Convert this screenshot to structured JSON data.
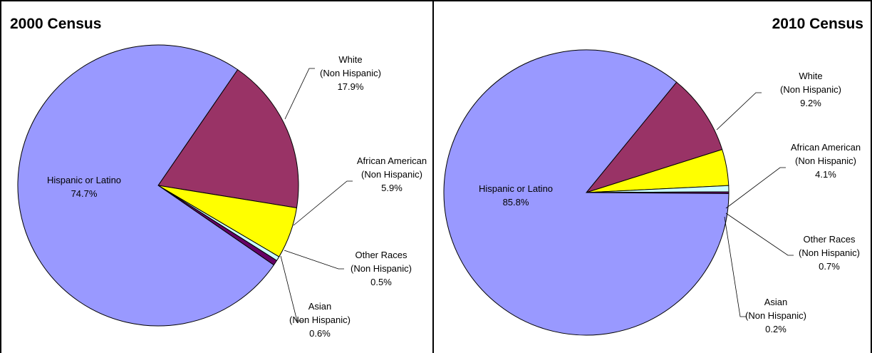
{
  "chart_data": [
    {
      "type": "pie",
      "title": "2000 Census",
      "slices": [
        {
          "label": [
            "White",
            "(Non Hispanic)"
          ],
          "value": 17.9,
          "display": "17.9%",
          "color": "#993366"
        },
        {
          "label": [
            "African American",
            "(Non Hispanic)"
          ],
          "value": 5.9,
          "display": "5.9%",
          "color": "#ffff00"
        },
        {
          "label": [
            "Other Races",
            "(Non Hispanic)"
          ],
          "value": 0.5,
          "display": "0.5%",
          "color": "#ccffff"
        },
        {
          "label": [
            "Asian",
            "(Non Hispanic)"
          ],
          "value": 0.6,
          "display": "0.6%",
          "color": "#660066"
        },
        {
          "label": [
            "Hispanic or Latino"
          ],
          "value": 74.7,
          "display": "74.7%",
          "color": "#9999ff"
        }
      ]
    },
    {
      "type": "pie",
      "title": "2010 Census",
      "slices": [
        {
          "label": [
            "White",
            "(Non Hispanic)"
          ],
          "value": 9.2,
          "display": "9.2%",
          "color": "#993366"
        },
        {
          "label": [
            "African American",
            "(Non Hispanic)"
          ],
          "value": 4.1,
          "display": "4.1%",
          "color": "#ffff00"
        },
        {
          "label": [
            "Other Races",
            "(Non Hispanic)"
          ],
          "value": 0.7,
          "display": "0.7%",
          "color": "#ccffff"
        },
        {
          "label": [
            "Asian",
            "(Non Hispanic)"
          ],
          "value": 0.2,
          "display": "0.2%",
          "color": "#660066"
        },
        {
          "label": [
            "Hispanic or Latino"
          ],
          "value": 85.8,
          "display": "85.8%",
          "color": "#9999ff"
        }
      ]
    }
  ]
}
